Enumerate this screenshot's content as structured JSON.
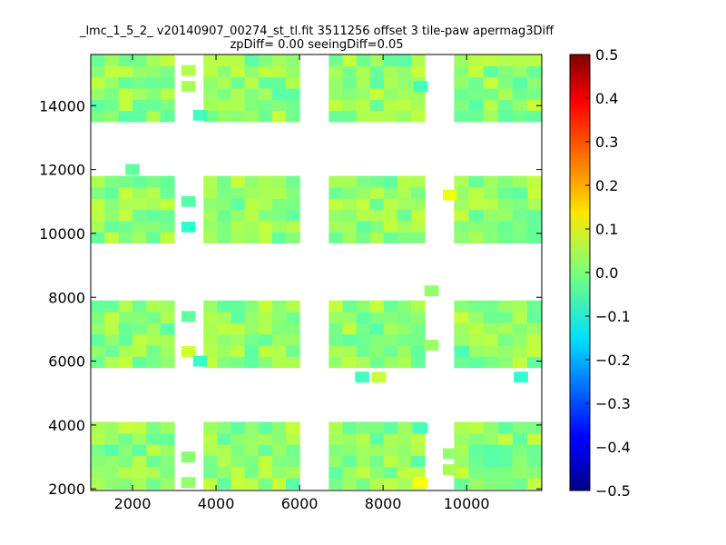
{
  "chart_data": {
    "type": "heatmap",
    "title_line1": "_lmc_1_5_2_ v20140907_00274_st_tl.fit 3511256 offset 3 tile-paw apermag3Diff",
    "title_line2": "zpDiff= 0.00 seeingDiff=0.05",
    "xlim": [
      1000,
      11800
    ],
    "ylim": [
      1950,
      15600
    ],
    "x_ticks": [
      2000,
      4000,
      6000,
      8000,
      10000
    ],
    "y_ticks": [
      2000,
      4000,
      6000,
      8000,
      10000,
      12000,
      14000
    ],
    "colorbar": {
      "range": [
        -0.5,
        0.5
      ],
      "ticks": [
        0.5,
        0.4,
        0.3,
        0.2,
        0.1,
        0.0,
        -0.1,
        -0.2,
        -0.3,
        -0.4,
        -0.5
      ],
      "tick_labels": [
        "0.5",
        "0.4",
        "0.3",
        "0.2",
        "0.1",
        "0.0",
        "−0.1",
        "−0.2",
        "−0.3",
        "−0.4",
        "−0.5"
      ],
      "colormap": "jet"
    },
    "cell_size": [
      340,
      340
    ],
    "detectors": [
      {
        "x": [
          1000,
          3000
        ],
        "y": [
          2000,
          4100
        ]
      },
      {
        "x": [
          3700,
          6000
        ],
        "y": [
          2000,
          4100
        ]
      },
      {
        "x": [
          6700,
          9000
        ],
        "y": [
          2000,
          4100
        ]
      },
      {
        "x": [
          9700,
          11800
        ],
        "y": [
          2000,
          4100
        ]
      },
      {
        "x": [
          1000,
          3000
        ],
        "y": [
          5800,
          7900
        ]
      },
      {
        "x": [
          3700,
          6000
        ],
        "y": [
          5800,
          7900
        ]
      },
      {
        "x": [
          6700,
          9000
        ],
        "y": [
          5800,
          7900
        ]
      },
      {
        "x": [
          9700,
          11800
        ],
        "y": [
          5800,
          7900
        ]
      },
      {
        "x": [
          1000,
          3000
        ],
        "y": [
          9700,
          11800
        ]
      },
      {
        "x": [
          3700,
          6000
        ],
        "y": [
          9700,
          11800
        ]
      },
      {
        "x": [
          6700,
          9000
        ],
        "y": [
          9700,
          11800
        ]
      },
      {
        "x": [
          9700,
          11800
        ],
        "y": [
          9700,
          11800
        ]
      },
      {
        "x": [
          1000,
          3000
        ],
        "y": [
          13500,
          15600
        ]
      },
      {
        "x": [
          3700,
          6000
        ],
        "y": [
          13500,
          15600
        ]
      },
      {
        "x": [
          6700,
          9000
        ],
        "y": [
          13500,
          15600
        ]
      },
      {
        "x": [
          9700,
          11800
        ],
        "y": [
          13500,
          15600
        ]
      }
    ],
    "typical_value_range": [
      -0.04,
      0.07
    ],
    "extra_points": [
      {
        "x": 3340,
        "y": 2200,
        "value": 0.02
      },
      {
        "x": 3340,
        "y": 3000,
        "value": 0.01
      },
      {
        "x": 3340,
        "y": 6300,
        "value": 0.08
      },
      {
        "x": 3340,
        "y": 7400,
        "value": -0.03
      },
      {
        "x": 3340,
        "y": 10200,
        "value": -0.08
      },
      {
        "x": 3340,
        "y": 11000,
        "value": -0.04
      },
      {
        "x": 3340,
        "y": 14600,
        "value": 0.04
      },
      {
        "x": 3340,
        "y": 15100,
        "value": 0.05
      },
      {
        "x": 3620,
        "y": 6000,
        "value": -0.07
      },
      {
        "x": 3620,
        "y": 13700,
        "value": -0.06
      },
      {
        "x": 2000,
        "y": 12000,
        "value": -0.03
      },
      {
        "x": 7500,
        "y": 5500,
        "value": -0.06
      },
      {
        "x": 7900,
        "y": 5500,
        "value": 0.07
      },
      {
        "x": 9160,
        "y": 6500,
        "value": 0.03
      },
      {
        "x": 9160,
        "y": 8200,
        "value": 0.02
      },
      {
        "x": 9600,
        "y": 11200,
        "value": 0.11
      },
      {
        "x": 9600,
        "y": 2600,
        "value": 0.04
      },
      {
        "x": 9600,
        "y": 3100,
        "value": 0.02
      },
      {
        "x": 11300,
        "y": 5500,
        "value": -0.08
      },
      {
        "x": 8900,
        "y": 2200,
        "value": 0.12
      },
      {
        "x": 8900,
        "y": 3900,
        "value": -0.06
      },
      {
        "x": 9900,
        "y": 6300,
        "value": -0.05
      },
      {
        "x": 8900,
        "y": 14600,
        "value": -0.06
      }
    ]
  }
}
